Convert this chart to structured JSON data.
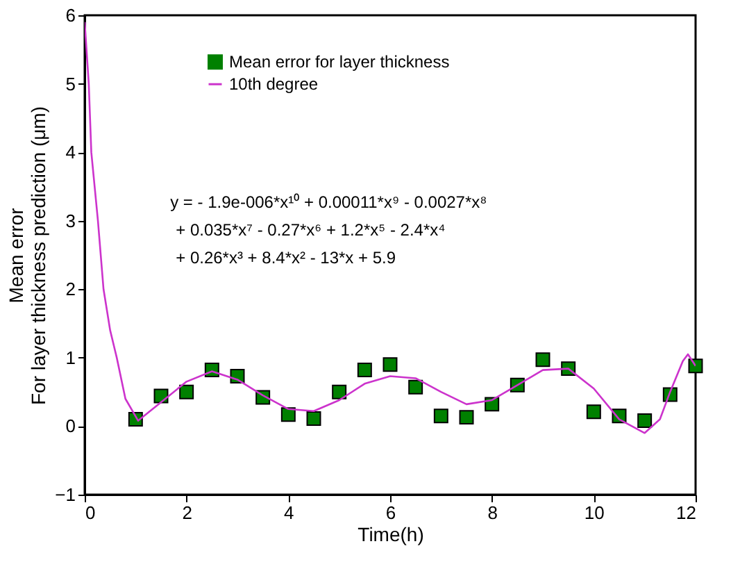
{
  "chart_data": {
    "type": "scatter",
    "xlabel": "Time(h)",
    "ylabel": "Mean error\nFor layer thickness prediction (μm)",
    "series": [
      {
        "name": "Mean error for layer thickness",
        "marker": "square",
        "color": "#008000",
        "x": [
          1,
          1.5,
          2,
          2.5,
          3,
          3.5,
          4,
          4.5,
          5,
          5.5,
          6,
          6.5,
          7,
          7.5,
          8,
          8.5,
          9,
          9.5,
          10,
          10.5,
          11,
          11.5,
          12
        ],
        "values": [
          0.1,
          0.44,
          0.5,
          0.82,
          0.73,
          0.42,
          0.17,
          0.11,
          0.5,
          0.82,
          0.9,
          0.57,
          0.15,
          0.13,
          0.32,
          0.6,
          0.97,
          0.84,
          0.21,
          0.15,
          0.08,
          0.46,
          0.88
        ]
      },
      {
        "name": "10th degree",
        "type": "line",
        "color": "#cc33cc",
        "x": [
          0,
          0.08,
          0.13,
          0.26,
          0.37,
          0.5,
          0.63,
          0.8,
          1.05,
          1.5,
          2,
          2.5,
          3,
          3.5,
          4,
          4.5,
          5,
          5.5,
          6,
          6.5,
          7,
          7.5,
          8,
          8.5,
          9,
          9.5,
          10,
          10.5,
          11,
          11.3,
          11.5,
          11.75,
          11.85,
          12
        ],
        "values": [
          5.9,
          5,
          4,
          3,
          2,
          1.4,
          1,
          0.4,
          0.08,
          0.35,
          0.65,
          0.8,
          0.68,
          0.45,
          0.25,
          0.22,
          0.38,
          0.62,
          0.73,
          0.7,
          0.5,
          0.32,
          0.38,
          0.6,
          0.82,
          0.84,
          0.55,
          0.1,
          -0.1,
          0.1,
          0.5,
          0.95,
          1.05,
          0.88
        ]
      }
    ],
    "annotations": [
      "y = - 1.9e-006*x¹⁰ + 0.00011*x⁹ - 0.0027*x⁸",
      "+ 0.035*x⁷ - 0.27*x⁶ + 1.2*x⁵ - 2.4*x⁴",
      "+ 0.26*x³ + 8.4*x² - 13*x + 5.9"
    ],
    "xlim": [
      0,
      12
    ],
    "xticks": [
      0,
      2,
      4,
      6,
      8,
      10,
      12
    ],
    "ylim": [
      -1,
      6
    ],
    "yticks": [
      -1,
      0,
      1,
      2,
      3,
      4,
      5,
      6
    ],
    "grid": false,
    "legend": "top",
    "line_style": "solid"
  }
}
